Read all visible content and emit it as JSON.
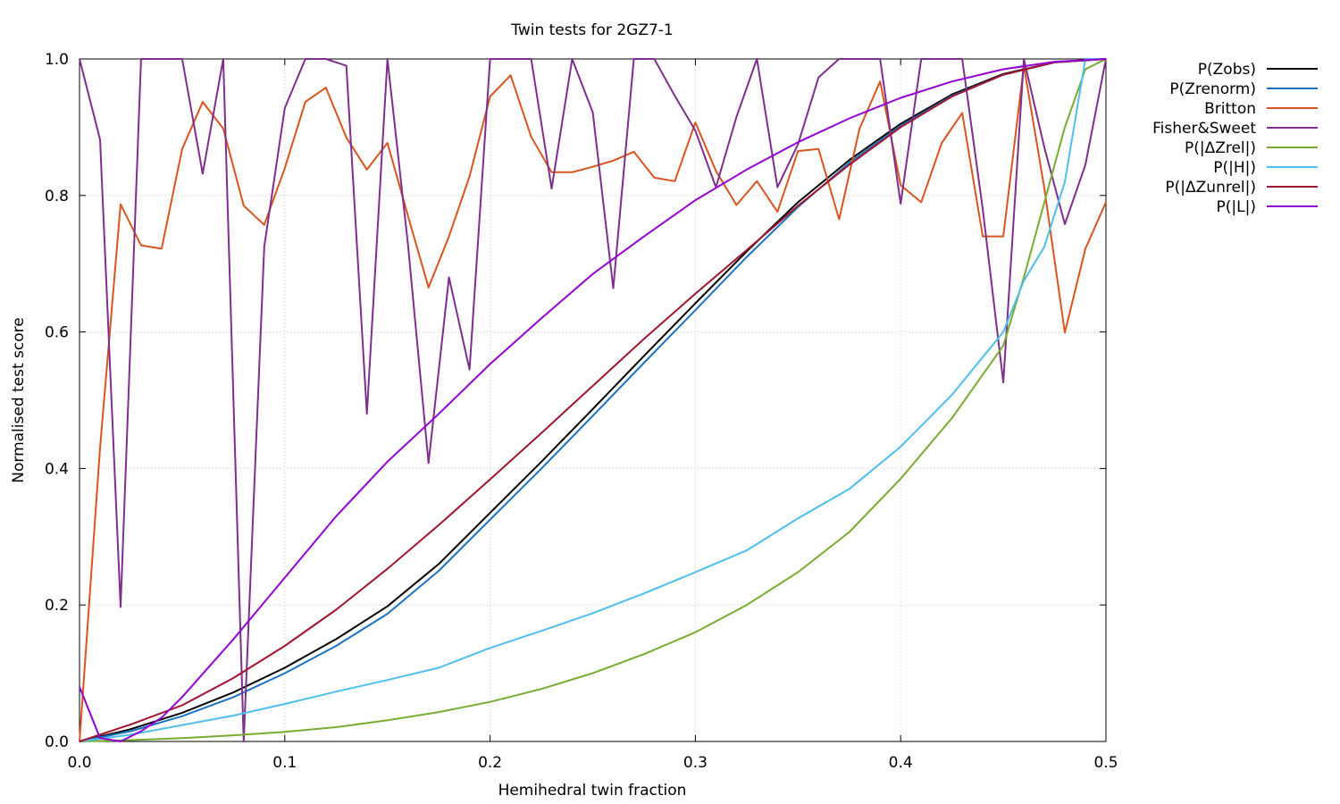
{
  "chart_data": {
    "type": "line",
    "title": "Twin tests for 2GZ7-1",
    "xlabel": "Hemihedral twin fraction",
    "ylabel": "Normalised test score",
    "xlim": [
      0,
      0.5
    ],
    "ylim": [
      0,
      1
    ],
    "xticks": [
      0,
      0.1,
      0.2,
      0.3,
      0.4,
      0.5
    ],
    "xtick_labels": [
      "0.0",
      "0.1",
      "0.2",
      "0.3",
      "0.4",
      "0.5"
    ],
    "yticks": [
      0,
      0.2,
      0.4,
      0.6,
      0.8,
      1.0
    ],
    "ytick_labels": [
      "0.0",
      "0.2",
      "0.4",
      "0.6",
      "0.8",
      "1.0"
    ],
    "grid": true,
    "legend_position": "outside-right",
    "series": [
      {
        "name": "P(Zobs)",
        "color": "#000000",
        "x": [
          0,
          0.025,
          0.05,
          0.075,
          0.1,
          0.125,
          0.15,
          0.175,
          0.2,
          0.225,
          0.25,
          0.275,
          0.3,
          0.325,
          0.35,
          0.375,
          0.4,
          0.425,
          0.45,
          0.475,
          0.5
        ],
        "y": [
          0,
          0.018,
          0.042,
          0.072,
          0.108,
          0.15,
          0.198,
          0.26,
          0.335,
          0.41,
          0.487,
          0.565,
          0.642,
          0.718,
          0.79,
          0.852,
          0.905,
          0.948,
          0.978,
          0.995,
          1.0
        ]
      },
      {
        "name": "P(Zrenorm)",
        "color": "#1a73c2",
        "x": [
          0,
          0.025,
          0.05,
          0.075,
          0.1,
          0.125,
          0.15,
          0.175,
          0.2,
          0.225,
          0.25,
          0.275,
          0.3,
          0.325,
          0.35,
          0.375,
          0.4,
          0.425,
          0.45,
          0.475,
          0.5
        ],
        "y": [
          0,
          0.015,
          0.037,
          0.065,
          0.1,
          0.14,
          0.187,
          0.25,
          0.325,
          0.4,
          0.477,
          0.555,
          0.632,
          0.71,
          0.783,
          0.848,
          0.902,
          0.946,
          0.977,
          0.995,
          1.0
        ]
      },
      {
        "name": "Britton",
        "color": "#d9541e",
        "x": [
          0,
          0.01,
          0.02,
          0.03,
          0.04,
          0.05,
          0.06,
          0.07,
          0.08,
          0.09,
          0.1,
          0.11,
          0.12,
          0.13,
          0.14,
          0.15,
          0.16,
          0.17,
          0.18,
          0.19,
          0.2,
          0.21,
          0.22,
          0.23,
          0.24,
          0.25,
          0.26,
          0.27,
          0.28,
          0.29,
          0.3,
          0.31,
          0.32,
          0.33,
          0.34,
          0.35,
          0.36,
          0.37,
          0.38,
          0.39,
          0.4,
          0.41,
          0.42,
          0.43,
          0.44,
          0.45,
          0.46,
          0.47,
          0.48,
          0.49,
          0.5
        ],
        "y": [
          0,
          0.43,
          0.787,
          0.727,
          0.722,
          0.868,
          0.937,
          0.898,
          0.785,
          0.757,
          0.84,
          0.937,
          0.958,
          0.885,
          0.838,
          0.877,
          0.77,
          0.665,
          0.74,
          0.828,
          0.945,
          0.976,
          0.886,
          0.834,
          0.834,
          0.842,
          0.851,
          0.864,
          0.826,
          0.821,
          0.907,
          0.836,
          0.786,
          0.821,
          0.776,
          0.865,
          0.868,
          0.765,
          0.898,
          0.967,
          0.815,
          0.79,
          0.877,
          0.921,
          0.74,
          0.74,
          0.99,
          0.81,
          0.599,
          0.722,
          0.79
        ]
      },
      {
        "name": "Fisher&Sweet",
        "color": "#7e2f8e",
        "x": [
          0,
          0.01,
          0.02,
          0.03,
          0.04,
          0.05,
          0.06,
          0.07,
          0.08,
          0.09,
          0.1,
          0.11,
          0.12,
          0.13,
          0.14,
          0.15,
          0.16,
          0.17,
          0.18,
          0.19,
          0.2,
          0.21,
          0.22,
          0.23,
          0.24,
          0.25,
          0.26,
          0.27,
          0.28,
          0.29,
          0.3,
          0.31,
          0.32,
          0.33,
          0.34,
          0.35,
          0.36,
          0.37,
          0.38,
          0.39,
          0.4,
          0.41,
          0.42,
          0.43,
          0.44,
          0.45,
          0.46,
          0.47,
          0.48,
          0.49,
          0.5
        ],
        "y": [
          1.0,
          0.882,
          0.197,
          1.0,
          1.0,
          1.0,
          0.832,
          1.0,
          0.0,
          0.725,
          0.928,
          1.0,
          1.0,
          0.99,
          0.48,
          1.0,
          0.728,
          0.408,
          0.68,
          0.545,
          1.0,
          1.0,
          1.0,
          0.81,
          1.0,
          0.922,
          0.664,
          1.0,
          1.0,
          0.946,
          0.895,
          0.812,
          0.915,
          1.0,
          0.812,
          0.875,
          0.973,
          1.0,
          1.0,
          1.0,
          0.788,
          1.0,
          1.0,
          1.0,
          0.78,
          0.526,
          1.0,
          0.87,
          0.758,
          0.845,
          1.0
        ]
      },
      {
        "name": "P(|ΔZrel|)",
        "color": "#77ac30",
        "x": [
          0,
          0.025,
          0.05,
          0.075,
          0.1,
          0.125,
          0.15,
          0.175,
          0.2,
          0.225,
          0.25,
          0.275,
          0.3,
          0.325,
          0.35,
          0.375,
          0.4,
          0.425,
          0.45,
          0.46,
          0.47,
          0.48,
          0.49,
          0.5
        ],
        "y": [
          0,
          0.002,
          0.005,
          0.009,
          0.014,
          0.021,
          0.031,
          0.043,
          0.058,
          0.077,
          0.1,
          0.128,
          0.16,
          0.2,
          0.248,
          0.307,
          0.385,
          0.474,
          0.58,
          0.68,
          0.79,
          0.9,
          0.985,
          1.0
        ]
      },
      {
        "name": "P(|H|)",
        "color": "#4dbeee",
        "x": [
          0,
          0.025,
          0.05,
          0.075,
          0.1,
          0.125,
          0.15,
          0.175,
          0.2,
          0.225,
          0.25,
          0.275,
          0.3,
          0.325,
          0.35,
          0.375,
          0.4,
          0.425,
          0.45,
          0.46,
          0.47,
          0.48,
          0.49,
          0.5
        ],
        "y": [
          0,
          0.01,
          0.024,
          0.038,
          0.055,
          0.073,
          0.09,
          0.108,
          0.137,
          0.162,
          0.188,
          0.217,
          0.248,
          0.28,
          0.327,
          0.37,
          0.432,
          0.508,
          0.6,
          0.675,
          0.725,
          0.82,
          1.0,
          1.0
        ]
      },
      {
        "name": "P(|ΔZunrel|)",
        "color": "#a2142f",
        "x": [
          0,
          0.025,
          0.05,
          0.075,
          0.1,
          0.125,
          0.15,
          0.175,
          0.2,
          0.225,
          0.25,
          0.275,
          0.3,
          0.325,
          0.35,
          0.375,
          0.4,
          0.425,
          0.45,
          0.475,
          0.5
        ],
        "y": [
          0,
          0.025,
          0.053,
          0.093,
          0.14,
          0.193,
          0.253,
          0.317,
          0.384,
          0.452,
          0.521,
          0.59,
          0.656,
          0.72,
          0.785,
          0.845,
          0.9,
          0.945,
          0.977,
          0.995,
          1.0
        ]
      },
      {
        "name": "P(|L|)",
        "color": "#9400d3",
        "x": [
          0,
          0.01,
          0.02,
          0.03,
          0.04,
          0.05,
          0.075,
          0.1,
          0.125,
          0.15,
          0.175,
          0.2,
          0.225,
          0.25,
          0.275,
          0.3,
          0.325,
          0.35,
          0.375,
          0.4,
          0.425,
          0.45,
          0.475,
          0.5
        ],
        "y": [
          0.08,
          0.005,
          0.0,
          0.015,
          0.035,
          0.065,
          0.15,
          0.24,
          0.33,
          0.41,
          0.48,
          0.553,
          0.62,
          0.685,
          0.74,
          0.793,
          0.838,
          0.878,
          0.913,
          0.943,
          0.967,
          0.985,
          0.996,
          1.0
        ]
      }
    ]
  }
}
